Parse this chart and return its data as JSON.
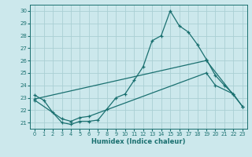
{
  "xlabel": "Humidex (Indice chaleur)",
  "bg_color": "#cce8ec",
  "grid_color": "#aacfd4",
  "line_color": "#1a7070",
  "xlim": [
    -0.5,
    23.5
  ],
  "ylim": [
    20.5,
    30.5
  ],
  "yticks": [
    21,
    22,
    23,
    24,
    25,
    26,
    27,
    28,
    29,
    30
  ],
  "xticks": [
    0,
    1,
    2,
    3,
    4,
    5,
    6,
    7,
    8,
    9,
    10,
    11,
    12,
    13,
    14,
    15,
    16,
    17,
    18,
    19,
    20,
    21,
    22,
    23
  ],
  "line1_x": [
    0,
    1,
    2,
    3,
    4,
    5,
    6,
    7,
    8,
    9,
    10,
    11,
    12,
    13,
    14,
    15,
    16,
    17,
    18,
    19,
    20,
    21,
    22
  ],
  "line1_y": [
    23.2,
    22.8,
    21.8,
    21.0,
    20.85,
    21.1,
    21.1,
    21.2,
    22.1,
    23.0,
    23.3,
    24.4,
    25.5,
    27.6,
    28.0,
    30.0,
    28.8,
    28.3,
    27.3,
    26.1,
    24.8,
    24.0,
    23.3
  ],
  "line2_x": [
    0,
    19,
    23
  ],
  "line2_y": [
    22.9,
    26.0,
    22.3
  ],
  "line3_x": [
    0,
    3,
    4,
    5,
    6,
    19,
    20,
    22,
    23
  ],
  "line3_y": [
    22.8,
    21.3,
    21.1,
    21.4,
    21.5,
    25.0,
    24.0,
    23.3,
    22.3
  ]
}
